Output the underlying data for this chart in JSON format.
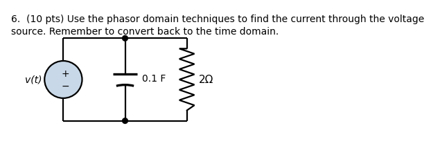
{
  "title_text": "6.  (10 pts) Use the phasor domain techniques to find the current through the voltage\nsource. Remember to convert back to the time domain.",
  "title_fontsize": 10.0,
  "title_color": "#000000",
  "bg_color": "#ffffff",
  "circuit": {
    "vs_fill": "#c8d8e8",
    "vs_edge": "#000000",
    "wire_color": "#000000",
    "wire_lw": 1.6,
    "node_color": "#000000",
    "vs_label": "v(t)",
    "cap_label": "0.1 F",
    "res_label": "2Ω"
  },
  "xlim": [
    0,
    474
  ],
  "ylim": [
    0,
    269
  ]
}
